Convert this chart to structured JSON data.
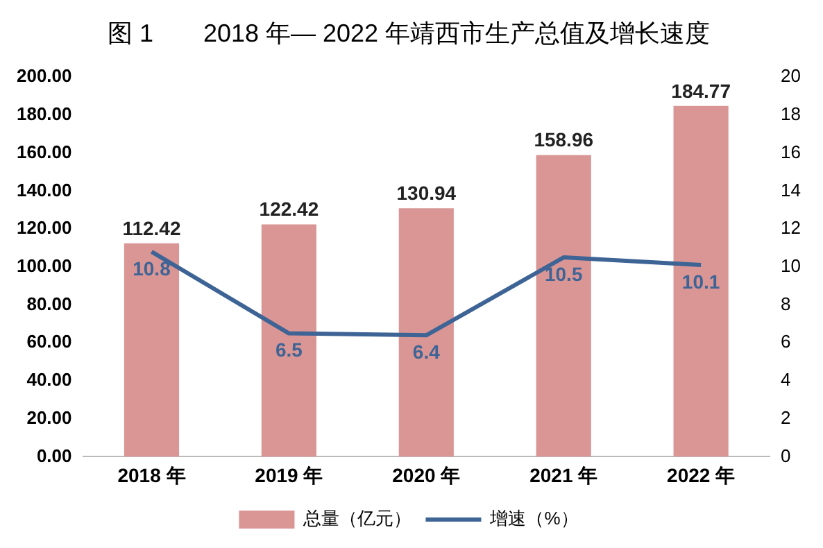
{
  "chart_data": {
    "type": "bar",
    "title": "图 1　　2018 年— 2022 年靖西市生产总值及增长速度",
    "categories": [
      "2018 年",
      "2019 年",
      "2020 年",
      "2021 年",
      "2022 年"
    ],
    "series": [
      {
        "name": "总量（亿元）",
        "color": "#d99694",
        "values": [
          112.42,
          122.42,
          130.94,
          158.96,
          184.77
        ]
      },
      {
        "name": "增速（%）",
        "type": "line",
        "axis": "y2",
        "color": "#3e6496",
        "values": [
          10.8,
          6.5,
          6.4,
          10.5,
          10.1
        ]
      }
    ],
    "ylim": [
      0,
      200
    ],
    "yticks": [
      {
        "value": 0,
        "label": "0.00"
      },
      {
        "value": 20,
        "label": "20.00"
      },
      {
        "value": 40,
        "label": "40.00"
      },
      {
        "value": 60,
        "label": "60.00"
      },
      {
        "value": 80,
        "label": "80.00"
      },
      {
        "value": 100,
        "label": "100.00"
      },
      {
        "value": 120,
        "label": "120.00"
      },
      {
        "value": 140,
        "label": "140.00"
      },
      {
        "value": 160,
        "label": "160.00"
      },
      {
        "value": 180,
        "label": "180.00"
      },
      {
        "value": 200,
        "label": "200.00"
      }
    ],
    "y2lim": [
      0,
      20
    ],
    "y2ticks": [
      0,
      2,
      4,
      6,
      8,
      10,
      12,
      14,
      16,
      18,
      20
    ],
    "data_labels": true,
    "grid": false,
    "legend": "bottom",
    "marker": "none",
    "line_style": "solid"
  }
}
